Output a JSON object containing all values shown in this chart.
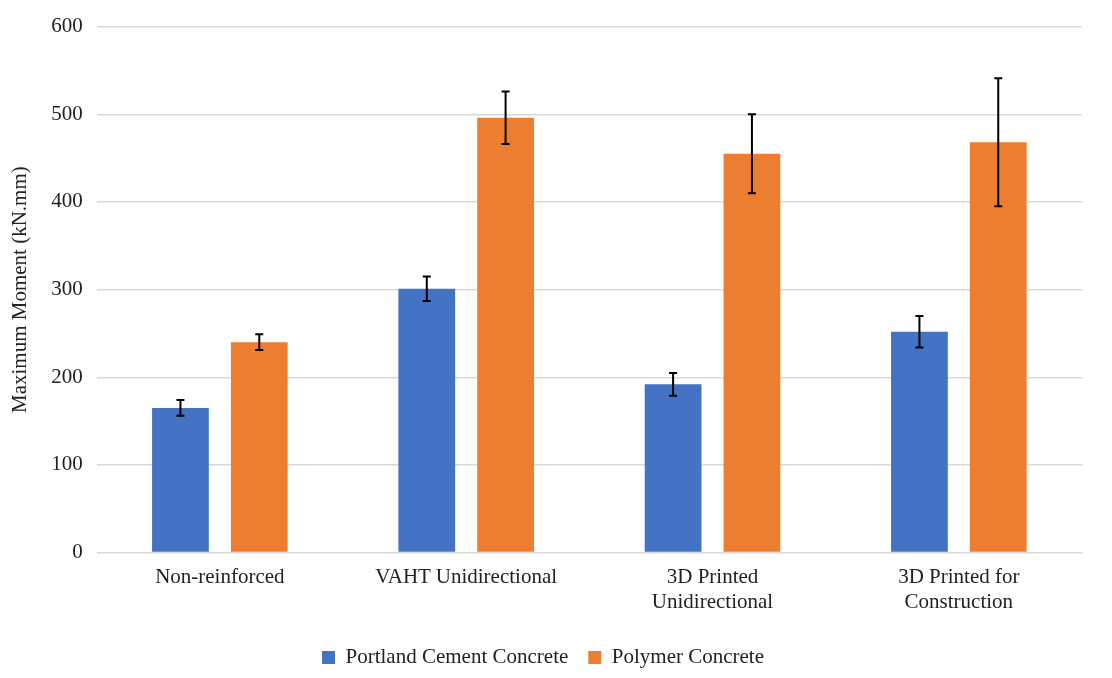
{
  "chart_data": {
    "type": "bar",
    "ylabel": "Maximum Moment (kN.mm)",
    "categories": [
      "Non-reinforced",
      "VAHT Unidirectional",
      "3D Printed Unidirectional",
      "3D Printed for Construction"
    ],
    "series": [
      {
        "name": "Portland Cement Concrete",
        "color": "#4472c4",
        "values": [
          165,
          301,
          192,
          252
        ],
        "errors": [
          9,
          14,
          13,
          18
        ]
      },
      {
        "name": "Polymer Concrete",
        "color": "#ed7d31",
        "values": [
          240,
          496,
          455,
          468
        ],
        "errors": [
          9,
          30,
          45,
          73
        ]
      }
    ],
    "ylim": [
      0,
      600
    ],
    "yticks": [
      0,
      100,
      200,
      300,
      400,
      500,
      600
    ],
    "grid": "y",
    "legend": "bottom"
  }
}
